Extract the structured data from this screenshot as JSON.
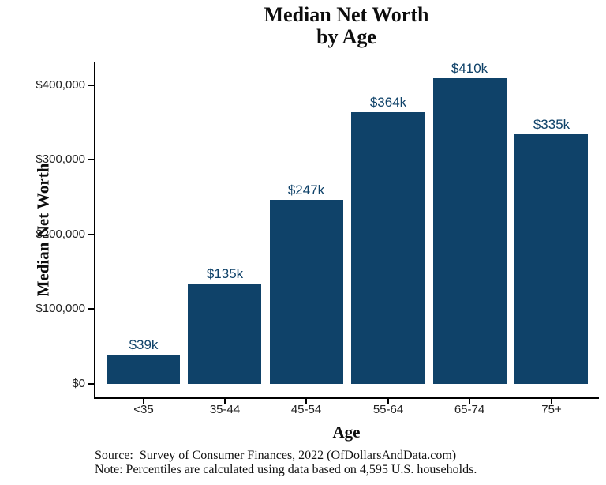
{
  "chart_data": {
    "type": "bar",
    "title": "Median Net Worth by Age",
    "title_lines": [
      "Median Net Worth",
      "by Age"
    ],
    "xlabel": "Age",
    "ylabel": "Median Net Worth",
    "categories": [
      "<35",
      "35-44",
      "45-54",
      "55-64",
      "65-74",
      "75+"
    ],
    "values_thousands": [
      39,
      135,
      247,
      364,
      410,
      335
    ],
    "bar_labels": [
      "$39k",
      "$135k",
      "$247k",
      "$364k",
      "$410k",
      "$335k"
    ],
    "y_ticks": [
      {
        "value_thousands": 0,
        "label": "$0"
      },
      {
        "value_thousands": 100,
        "label": "$100,000"
      },
      {
        "value_thousands": 200,
        "label": "$200,000"
      },
      {
        "value_thousands": 300,
        "label": "$300,000"
      },
      {
        "value_thousands": 400,
        "label": "$400,000"
      }
    ],
    "ylim_thousands": [
      0,
      400
    ],
    "grid": false,
    "legend": "none",
    "colors": {
      "bar": "#0f4269",
      "bar_value_label": "#0f4269",
      "axis_line": "#000000",
      "tick_text": "#222222",
      "title_text": "#0d0d0d",
      "caption_text": "#111111"
    },
    "caption_lines": [
      "Source:  Survey of Consumer Finances, 2022 (OfDollarsAndData.com)",
      "Note: Percentiles are calculated using data based on 4,595 U.S. households."
    ]
  }
}
